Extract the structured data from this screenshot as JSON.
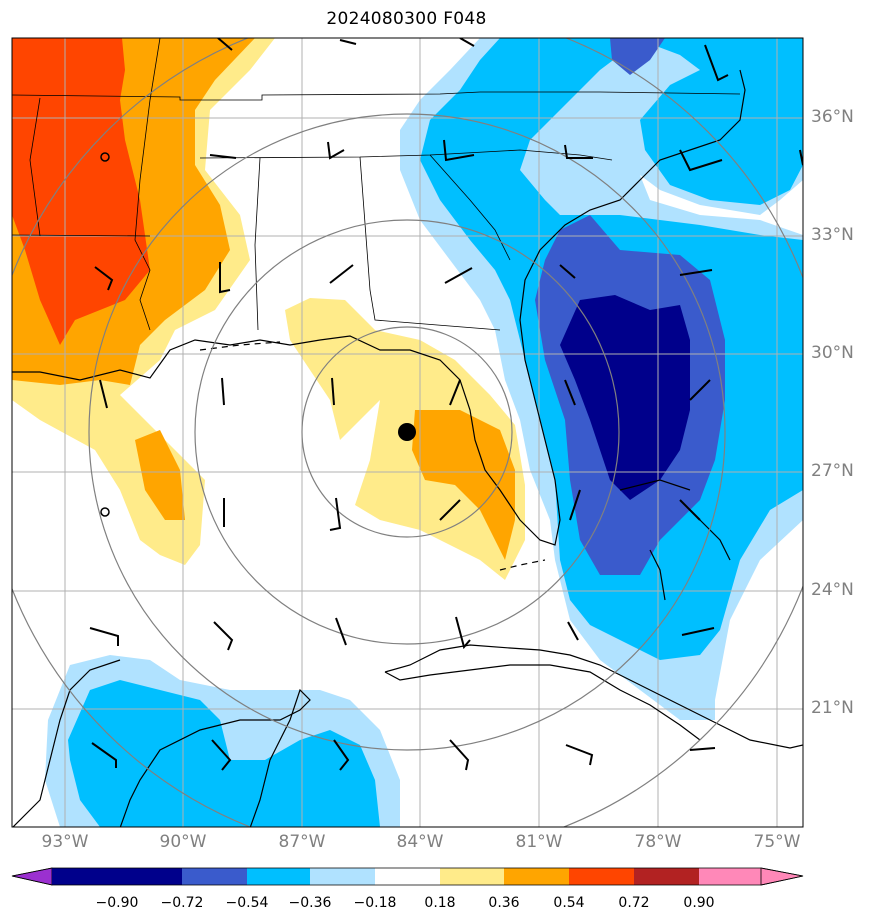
{
  "title": "2024080300 F048",
  "lat_labels": [
    "36°N",
    "33°N",
    "30°N",
    "27°N",
    "24°N",
    "21°N"
  ],
  "lon_labels": [
    "93°W",
    "90°W",
    "87°W",
    "84°W",
    "81°W",
    "78°W",
    "75°W"
  ],
  "colorbar": {
    "ticks": [
      "−0.90",
      "−0.72",
      "−0.54",
      "−0.36",
      "−0.18",
      "0.18",
      "0.36",
      "0.54",
      "0.72",
      "0.90"
    ],
    "colors": [
      "#9b30d0",
      "#00008b",
      "#3a5bcc",
      "#00bfff",
      "#b0e2ff",
      "#ffffff",
      "#ffeb8a",
      "#ffa500",
      "#ff4500",
      "#b22222",
      "#ff88b8"
    ]
  },
  "center_marker": "storm-center",
  "colors": {
    "grid": "#b0b0b0",
    "range_rings": "#808080",
    "coast": "#000000"
  }
}
